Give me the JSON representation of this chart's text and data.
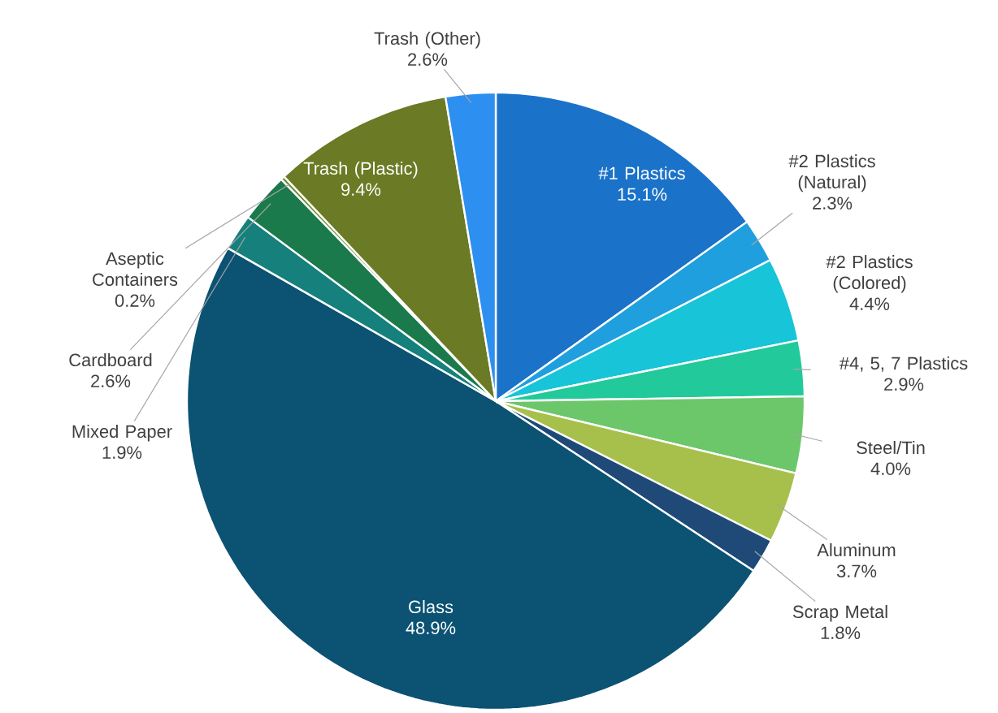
{
  "chart_data": {
    "type": "pie",
    "categories": [
      "#1 Plastics",
      "#2 Plastics (Natural)",
      "#2 Plastics (Colored)",
      "#4, 5, 7 Plastics",
      "Steel/Tin",
      "Aluminum",
      "Scrap Metal",
      "Glass",
      "Mixed Paper",
      "Cardboard",
      "Aseptic Containers",
      "Trash (Plastic)",
      "Trash (Other)"
    ],
    "values": [
      15.1,
      2.3,
      4.4,
      2.9,
      4.0,
      3.7,
      1.8,
      48.9,
      1.9,
      2.6,
      0.2,
      9.4,
      2.6
    ],
    "value_labels": [
      "15.1%",
      "2.3%",
      "4.4%",
      "2.9%",
      "4.0%",
      "3.7%",
      "1.8%",
      "48.9%",
      "1.9%",
      "2.6%",
      "0.2%",
      "9.4%",
      "2.6%"
    ],
    "colors": [
      "#1a72c9",
      "#1f9fde",
      "#18c4d8",
      "#22c99b",
      "#6cc76a",
      "#a6c04b",
      "#1f4a78",
      "#0b5273",
      "#15807c",
      "#1b7a4b",
      "#6a8a2c",
      "#6b7a24",
      "#2d8ff0"
    ]
  }
}
